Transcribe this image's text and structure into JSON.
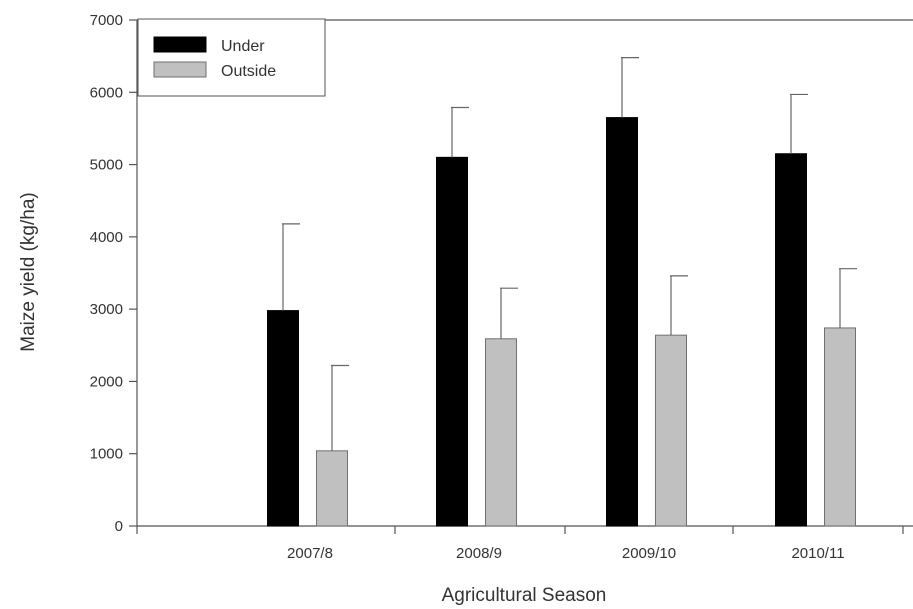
{
  "chart_data": {
    "type": "bar",
    "title": "",
    "xlabel": "Agricultural Season",
    "ylabel": "Maize yield (kg/ha)",
    "ylim": [
      0,
      7000
    ],
    "yticks": [
      0,
      1000,
      2000,
      3000,
      4000,
      5000,
      6000,
      7000
    ],
    "categories": [
      "2007/8",
      "2008/9",
      "2009/10",
      "2010/11"
    ],
    "series": [
      {
        "name": "Under",
        "color": "#000000",
        "values": [
          2980,
          5100,
          5650,
          5150
        ],
        "error_upper": [
          4180,
          5790,
          6480,
          5970
        ]
      },
      {
        "name": "Outside",
        "color": "#c0c0c0",
        "values": [
          1040,
          2590,
          2640,
          2740
        ],
        "error_upper": [
          2220,
          3290,
          3460,
          3560
        ]
      }
    ],
    "legend_position": "top-left",
    "grid": false
  }
}
